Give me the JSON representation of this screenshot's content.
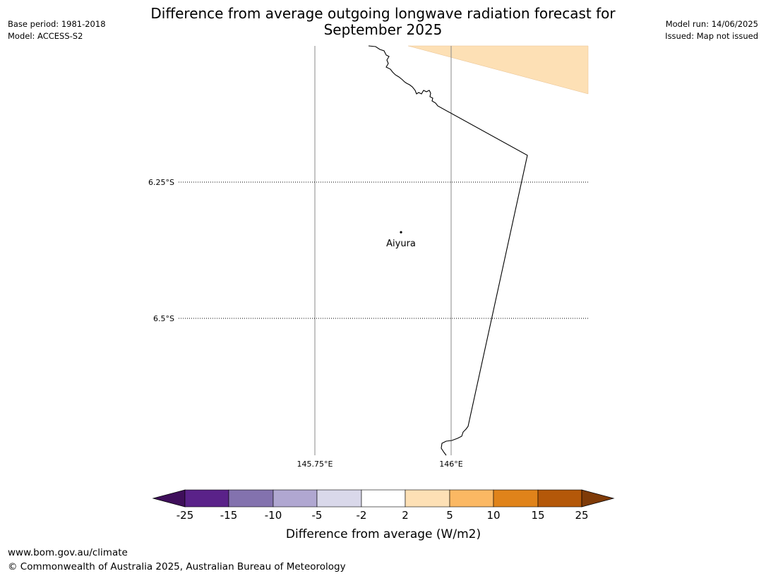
{
  "header": {
    "title_line1": "Difference from average outgoing longwave radiation forecast for",
    "title_line2": "September 2025",
    "base_period": "Base period: 1981-2018",
    "model": "Model: ACCESS-S2",
    "model_run": "Model run: 14/06/2025",
    "issued": "Issued: Map not issued"
  },
  "map": {
    "lat_labels": [
      "6.25°S",
      "6.5°S"
    ],
    "lon_labels": [
      "145.75°E",
      "146°E"
    ],
    "place": {
      "name": "Aiyura"
    },
    "shaded_category": "2 to 5"
  },
  "colorbar": {
    "ticks": [
      "-25",
      "-15",
      "-10",
      "-5",
      "-2",
      "2",
      "5",
      "10",
      "15",
      "25"
    ],
    "colors": [
      "#3f0f5b",
      "#5a2289",
      "#8372ae",
      "#b0a7d1",
      "#d9d8ea",
      "#ffffff",
      "#fde0b5",
      "#fbb863",
      "#e0831a",
      "#b45809",
      "#7f3b08"
    ],
    "label": "Difference from average (W/m2)"
  },
  "footer": {
    "url": "www.bom.gov.au/climate",
    "copyright": "© Commonwealth of Australia 2025, Australian Bureau of Meteorology"
  }
}
